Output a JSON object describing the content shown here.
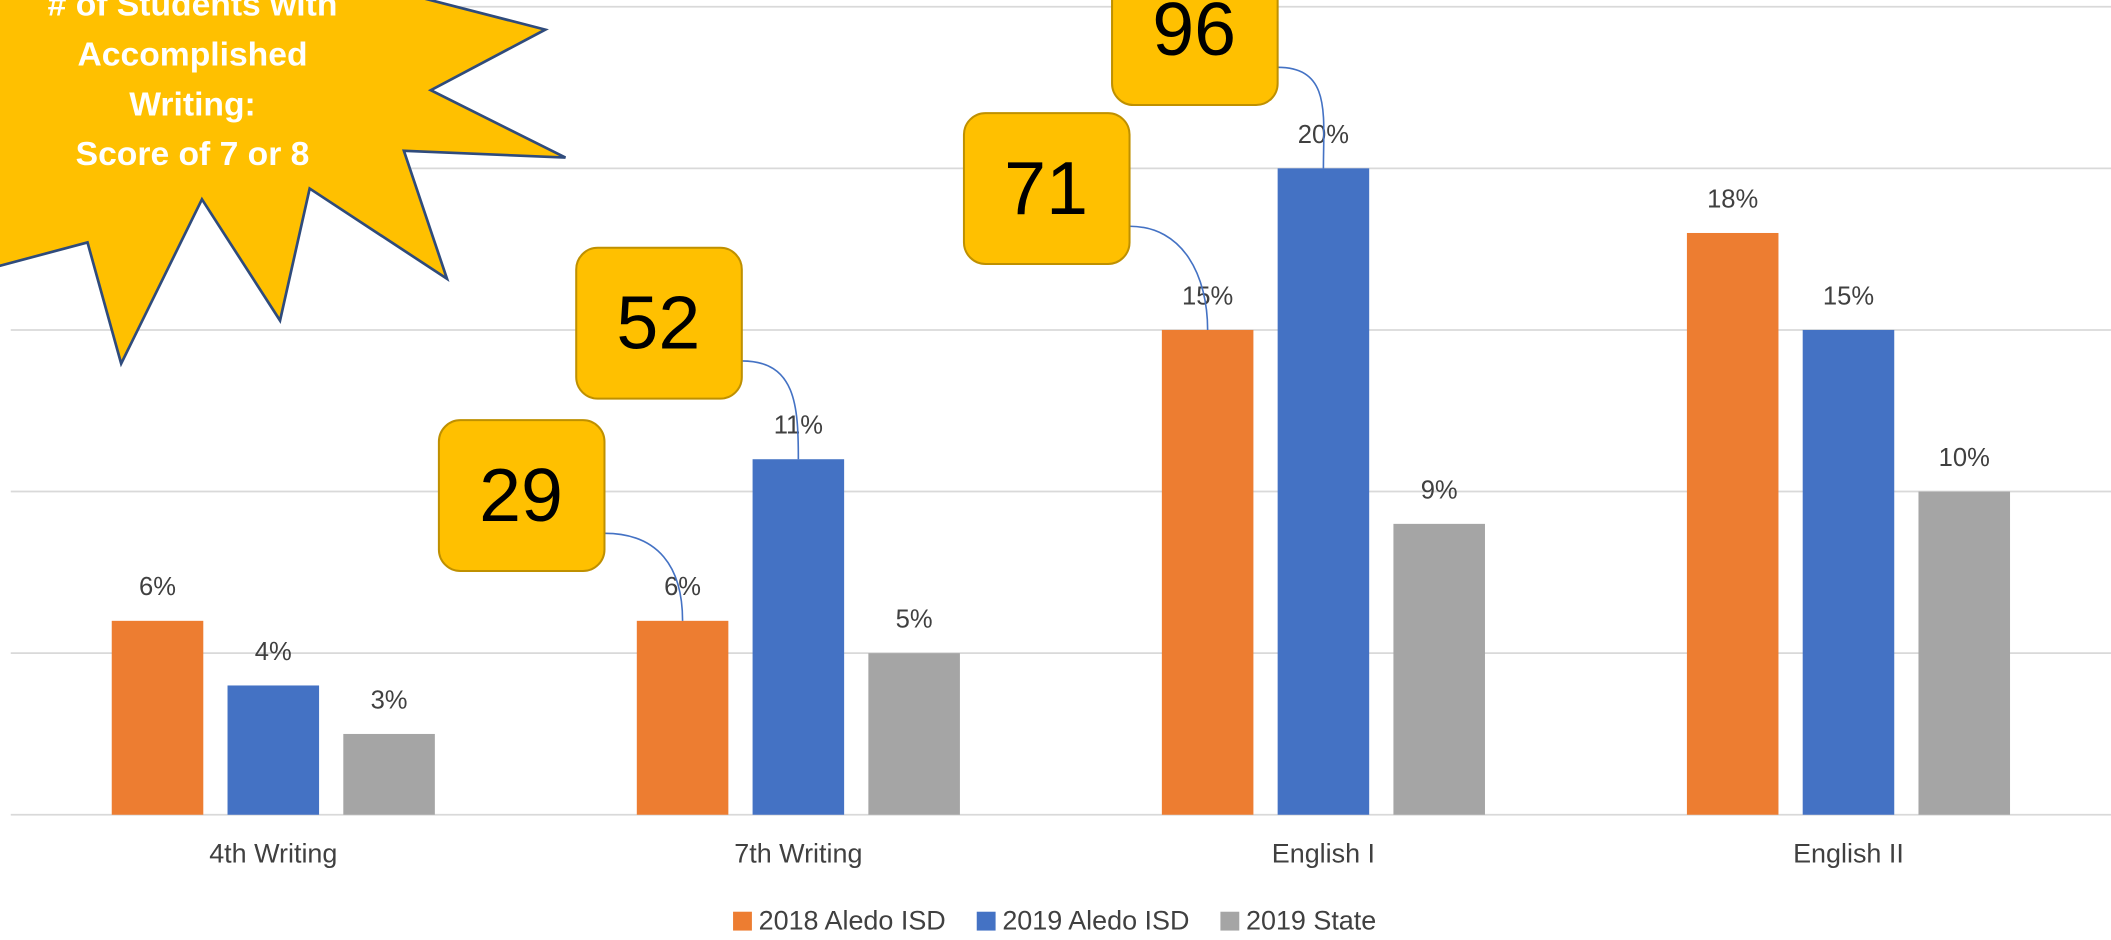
{
  "chart_data": {
    "type": "bar",
    "title_lines": [
      "# of Students with",
      "Accomplished",
      "Writing:",
      "Score of 7 or 8"
    ],
    "categories": [
      "4th Writing",
      "7th Writing",
      "English I",
      "English II"
    ],
    "series": [
      {
        "name": "2018 Aledo ISD",
        "color": "#ed7d31",
        "values": [
          6,
          6,
          15,
          18
        ],
        "value_labels": [
          "6%",
          "6%",
          "15%",
          "18%"
        ]
      },
      {
        "name": "2019 Aledo ISD",
        "color": "#4472c4",
        "values": [
          4,
          11,
          20,
          15
        ],
        "value_labels": [
          "4%",
          "11%",
          "20%",
          "15%"
        ]
      },
      {
        "name": "2019 State",
        "color": "#a5a5a5",
        "values": [
          2.5,
          5,
          9,
          10
        ],
        "value_labels": [
          "3%",
          "5%",
          "9%",
          "10%"
        ]
      }
    ],
    "ylim": [
      0,
      25
    ],
    "yticks": [
      0,
      5,
      10,
      15,
      20,
      25
    ],
    "ytick_labels": false,
    "grid": true,
    "legend": "bottom",
    "callouts": [
      29,
      52,
      71,
      96
    ]
  }
}
